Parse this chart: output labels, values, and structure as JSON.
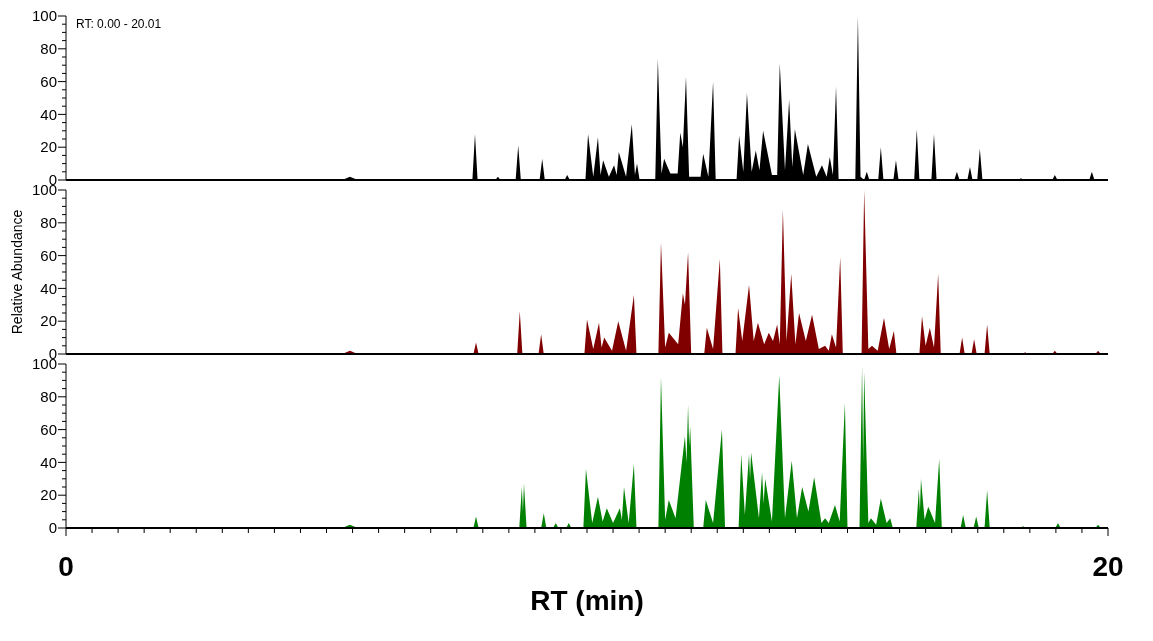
{
  "chart_data": [
    {
      "type": "area",
      "annotations": [
        "RT: 0.00 - 20.01"
      ],
      "xlim": [
        0,
        20
      ],
      "ylim": [
        0,
        100
      ],
      "tick_labels": "y",
      "yticks": [
        0,
        {
          "value": 5,
          "label": null
        },
        {
          "value": 10,
          "label": null
        },
        {
          "value": 15,
          "label": null
        },
        20,
        {
          "value": 25,
          "label": null
        },
        {
          "value": 30,
          "label": null
        },
        {
          "value": 35,
          "label": null
        },
        40,
        {
          "value": 45,
          "label": null
        },
        {
          "value": 50,
          "label": null
        },
        {
          "value": 55,
          "label": null
        },
        60,
        {
          "value": 65,
          "label": null
        },
        {
          "value": 70,
          "label": null
        },
        {
          "value": 75,
          "label": null
        },
        80,
        {
          "value": 85,
          "label": null
        },
        {
          "value": 90,
          "label": null
        },
        {
          "value": 95,
          "label": null
        },
        100
      ],
      "series": [
        {
          "color": "#000000",
          "x": [
            0,
            5.3,
            5.45,
            5.6,
            7.8,
            7.85,
            7.9,
            8.24,
            8.29,
            8.34,
            8.63,
            8.68,
            8.73,
            9.09,
            9.14,
            9.19,
            9.57,
            9.62,
            9.67,
            9.97,
            10.02,
            10.12,
            10.21,
            10.26,
            10.31,
            10.42,
            10.52,
            10.57,
            10.61,
            10.75,
            10.86,
            10.92,
            10.96,
            11.01,
            11.31,
            11.36,
            11.43,
            11.48,
            11.6,
            11.74,
            11.79,
            11.84,
            11.9,
            11.96,
            12.18,
            12.23,
            12.33,
            12.42,
            12.47,
            12.87,
            12.92,
            13.0,
            13.07,
            13.16,
            13.24,
            13.31,
            13.38,
            13.55,
            13.65,
            13.7,
            13.8,
            13.88,
            13.94,
            13.99,
            14.15,
            14.24,
            14.4,
            14.51,
            14.6,
            14.66,
            14.72,
            14.78,
            14.83,
            15.15,
            15.2,
            15.25,
            15.32,
            15.37,
            15.42,
            15.59,
            15.64,
            15.69,
            15.88,
            15.93,
            15.98,
            16.28,
            16.33,
            16.38,
            16.61,
            16.66,
            16.71,
            17.05,
            17.1,
            17.15,
            17.3,
            17.35,
            17.4,
            17.49,
            17.54,
            17.59,
            18.28,
            18.33,
            18.38,
            18.93,
            18.98,
            19.03,
            19.64,
            19.69,
            19.74,
            20
          ],
          "values": [
            0,
            0,
            2,
            0,
            0,
            28,
            0,
            0,
            2,
            0,
            0,
            21,
            0,
            0,
            13,
            0,
            0,
            3,
            0,
            0,
            28,
            2,
            26,
            3,
            12,
            2,
            9,
            3,
            17,
            2,
            34,
            3,
            10,
            0,
            0,
            74,
            4,
            13,
            4,
            4,
            29,
            20,
            63,
            2,
            2,
            16,
            2,
            60,
            0,
            0,
            27,
            5,
            53,
            5,
            18,
            6,
            30,
            3,
            3,
            71,
            6,
            49,
            8,
            31,
            3,
            22,
            2,
            9,
            2,
            14,
            3,
            57,
            0,
            0,
            100,
            2,
            0,
            5,
            0,
            0,
            20,
            0,
            0,
            12,
            0,
            0,
            31,
            0,
            0,
            28,
            0,
            0,
            5,
            0,
            0,
            8,
            0,
            0,
            19,
            0,
            0,
            1,
            0,
            0,
            3,
            0,
            0,
            5,
            0,
            0
          ]
        }
      ]
    },
    {
      "type": "area",
      "ylabel": "Relative Abundance",
      "xlim": [
        0,
        20
      ],
      "ylim": [
        0,
        100
      ],
      "tick_labels": "y",
      "yticks": [
        0,
        {
          "value": 5,
          "label": null
        },
        {
          "value": 10,
          "label": null
        },
        {
          "value": 15,
          "label": null
        },
        20,
        {
          "value": 25,
          "label": null
        },
        {
          "value": 30,
          "label": null
        },
        {
          "value": 35,
          "label": null
        },
        40,
        {
          "value": 45,
          "label": null
        },
        {
          "value": 50,
          "label": null
        },
        {
          "value": 55,
          "label": null
        },
        60,
        {
          "value": 65,
          "label": null
        },
        {
          "value": 70,
          "label": null
        },
        {
          "value": 75,
          "label": null
        },
        80,
        {
          "value": 85,
          "label": null
        },
        {
          "value": 90,
          "label": null
        },
        {
          "value": 95,
          "label": null
        },
        100
      ],
      "series": [
        {
          "color": "#800000",
          "x": [
            0,
            5.3,
            5.45,
            5.6,
            7.82,
            7.87,
            7.92,
            8.66,
            8.71,
            8.76,
            9.07,
            9.12,
            9.17,
            9.95,
            10.0,
            10.12,
            10.23,
            10.28,
            10.33,
            10.48,
            10.6,
            10.75,
            10.9,
            10.95,
            11.37,
            11.42,
            11.5,
            11.57,
            11.75,
            11.84,
            11.88,
            11.94,
            12.0,
            12.25,
            12.3,
            12.42,
            12.55,
            12.6,
            12.85,
            12.9,
            12.98,
            13.11,
            13.2,
            13.28,
            13.4,
            13.49,
            13.57,
            13.65,
            13.7,
            13.76,
            13.83,
            13.92,
            14.0,
            14.07,
            14.2,
            14.32,
            14.45,
            14.57,
            14.64,
            14.7,
            14.78,
            14.86,
            14.91,
            15.27,
            15.32,
            15.4,
            15.47,
            15.58,
            15.7,
            15.8,
            15.89,
            15.94,
            16.38,
            16.43,
            16.5,
            16.58,
            16.66,
            16.74,
            16.79,
            17.15,
            17.2,
            17.25,
            17.38,
            17.43,
            17.48,
            17.63,
            17.68,
            17.73,
            18.36,
            18.41,
            18.46,
            18.93,
            18.98,
            19.03,
            19.76,
            19.81,
            19.86,
            20
          ],
          "values": [
            0,
            0,
            2,
            0,
            0,
            7,
            0,
            0,
            26,
            0,
            0,
            12,
            0,
            0,
            21,
            3,
            19,
            4,
            10,
            2,
            20,
            2,
            36,
            0,
            0,
            68,
            4,
            13,
            6,
            37,
            30,
            62,
            0,
            0,
            16,
            3,
            58,
            0,
            0,
            28,
            8,
            42,
            8,
            19,
            6,
            13,
            8,
            18,
            6,
            88,
            8,
            49,
            6,
            25,
            8,
            24,
            3,
            5,
            2,
            12,
            4,
            59,
            0,
            0,
            100,
            3,
            5,
            2,
            22,
            3,
            14,
            0,
            0,
            23,
            5,
            16,
            4,
            49,
            0,
            0,
            10,
            0,
            0,
            9,
            0,
            0,
            18,
            0,
            0,
            1,
            0,
            0,
            2,
            0,
            0,
            2,
            0,
            0
          ]
        }
      ]
    },
    {
      "type": "area",
      "xlabel": "RT (min)",
      "xlim": [
        0,
        20
      ],
      "ylim": [
        0,
        100
      ],
      "xticks": [
        0,
        {
          "value": 0.5,
          "label": null
        },
        {
          "value": 1,
          "label": null
        },
        {
          "value": 1.5,
          "label": null
        },
        {
          "value": 2,
          "label": null
        },
        {
          "value": 2.5,
          "label": null
        },
        {
          "value": 3,
          "label": null
        },
        {
          "value": 3.5,
          "label": null
        },
        {
          "value": 4,
          "label": null
        },
        {
          "value": 4.5,
          "label": null
        },
        {
          "value": 5,
          "label": null
        },
        {
          "value": 5.5,
          "label": null
        },
        {
          "value": 6,
          "label": null
        },
        {
          "value": 6.5,
          "label": null
        },
        {
          "value": 7,
          "label": null
        },
        {
          "value": 7.5,
          "label": null
        },
        {
          "value": 8,
          "label": null
        },
        {
          "value": 8.5,
          "label": null
        },
        {
          "value": 9,
          "label": null
        },
        {
          "value": 9.5,
          "label": null
        },
        {
          "value": 10,
          "label": null
        },
        {
          "value": 10.5,
          "label": null
        },
        {
          "value": 11,
          "label": null
        },
        {
          "value": 11.5,
          "label": null
        },
        {
          "value": 12,
          "label": null
        },
        {
          "value": 12.5,
          "label": null
        },
        {
          "value": 13,
          "label": null
        },
        {
          "value": 13.5,
          "label": null
        },
        {
          "value": 14,
          "label": null
        },
        {
          "value": 14.5,
          "label": null
        },
        {
          "value": 15,
          "label": null
        },
        {
          "value": 15.5,
          "label": null
        },
        {
          "value": 16,
          "label": null
        },
        {
          "value": 16.5,
          "label": null
        },
        {
          "value": 17,
          "label": null
        },
        {
          "value": 17.5,
          "label": null
        },
        {
          "value": 18,
          "label": null
        },
        {
          "value": 18.5,
          "label": null
        },
        {
          "value": 19,
          "label": null
        },
        {
          "value": 19.5,
          "label": null
        },
        20
      ],
      "yticks": [
        0,
        {
          "value": 5,
          "label": null
        },
        {
          "value": 10,
          "label": null
        },
        {
          "value": 15,
          "label": null
        },
        20,
        {
          "value": 25,
          "label": null
        },
        {
          "value": 30,
          "label": null
        },
        {
          "value": 35,
          "label": null
        },
        40,
        {
          "value": 45,
          "label": null
        },
        {
          "value": 50,
          "label": null
        },
        {
          "value": 55,
          "label": null
        },
        60,
        {
          "value": 65,
          "label": null
        },
        {
          "value": 70,
          "label": null
        },
        {
          "value": 75,
          "label": null
        },
        80,
        {
          "value": 85,
          "label": null
        },
        {
          "value": 90,
          "label": null
        },
        {
          "value": 95,
          "label": null
        },
        100
      ],
      "series": [
        {
          "color": "#008000",
          "x": [
            0,
            5.3,
            5.45,
            5.6,
            7.82,
            7.87,
            7.92,
            8.7,
            8.75,
            8.77,
            8.79,
            8.84,
            9.12,
            9.17,
            9.22,
            9.35,
            9.4,
            9.45,
            9.6,
            9.65,
            9.7,
            9.93,
            9.98,
            10.1,
            10.21,
            10.3,
            10.38,
            10.5,
            10.63,
            10.67,
            10.71,
            10.8,
            10.9,
            10.95,
            11.37,
            11.42,
            11.5,
            11.57,
            11.7,
            11.88,
            11.91,
            11.94,
            11.96,
            11.98,
            12.05,
            12.23,
            12.28,
            12.42,
            12.59,
            12.65,
            12.91,
            12.96,
            13.03,
            13.11,
            13.13,
            13.15,
            13.3,
            13.36,
            13.39,
            13.42,
            13.55,
            13.69,
            13.8,
            13.93,
            14.03,
            14.13,
            14.25,
            14.36,
            14.5,
            14.57,
            14.64,
            14.76,
            14.85,
            14.95,
            15.0,
            15.23,
            15.28,
            15.3,
            15.32,
            15.4,
            15.45,
            15.55,
            15.64,
            15.75,
            15.82,
            15.87,
            16.32,
            16.37,
            16.39,
            16.41,
            16.48,
            16.55,
            16.68,
            16.76,
            16.81,
            17.17,
            17.22,
            17.27,
            17.42,
            17.47,
            17.52,
            17.63,
            17.68,
            17.73,
            18.32,
            18.37,
            18.42,
            18.99,
            19.04,
            19.09,
            19.76,
            19.81,
            19.86,
            20
          ],
          "values": [
            0,
            0,
            2,
            0,
            0,
            7,
            0,
            0,
            25,
            10,
            27,
            0,
            0,
            9,
            0,
            0,
            3,
            0,
            0,
            3,
            0,
            0,
            36,
            3,
            19,
            4,
            12,
            3,
            12,
            5,
            25,
            3,
            39,
            0,
            0,
            92,
            5,
            17,
            6,
            56,
            40,
            75,
            50,
            62,
            0,
            0,
            17,
            3,
            60,
            0,
            0,
            45,
            8,
            45,
            30,
            46,
            6,
            34,
            15,
            30,
            4,
            93,
            6,
            41,
            6,
            25,
            10,
            31,
            3,
            6,
            3,
            14,
            4,
            76,
            0,
            0,
            99,
            40,
            95,
            3,
            6,
            2,
            18,
            3,
            6,
            0,
            0,
            24,
            10,
            30,
            5,
            13,
            3,
            42,
            0,
            0,
            8,
            0,
            0,
            7,
            0,
            0,
            23,
            0,
            0,
            1,
            0,
            0,
            3,
            0,
            0,
            2,
            0,
            0
          ]
        }
      ]
    }
  ]
}
